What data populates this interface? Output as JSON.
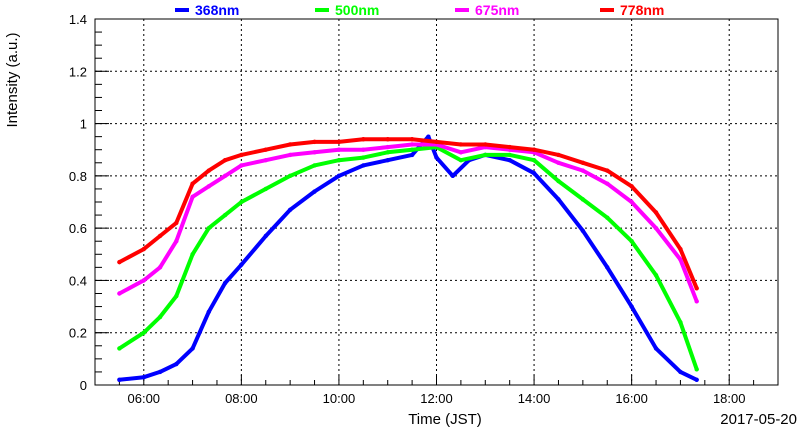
{
  "chart_data": {
    "type": "scatter",
    "xlabel": "Time (JST)",
    "ylabel": "Intensity (a.u.)",
    "date_label": "2017-05-20",
    "xlim": [
      "05:00",
      "19:00"
    ],
    "ylim": [
      0,
      1.4
    ],
    "x_ticks": [
      "06:00",
      "08:00",
      "10:00",
      "12:00",
      "14:00",
      "16:00",
      "18:00"
    ],
    "y_ticks": [
      "0",
      "0.2",
      "0.4",
      "0.6",
      "0.8",
      "1",
      "1.2",
      "1.4"
    ],
    "grid": true,
    "legend_position": "top",
    "series": [
      {
        "name": "368nm",
        "color": "#0000ff",
        "points": [
          [
            "05:30",
            0.02
          ],
          [
            "06:00",
            0.03
          ],
          [
            "06:20",
            0.05
          ],
          [
            "06:40",
            0.08
          ],
          [
            "07:00",
            0.14
          ],
          [
            "07:20",
            0.28
          ],
          [
            "07:40",
            0.39
          ],
          [
            "08:00",
            0.46
          ],
          [
            "08:30",
            0.57
          ],
          [
            "09:00",
            0.67
          ],
          [
            "09:30",
            0.74
          ],
          [
            "10:00",
            0.8
          ],
          [
            "10:30",
            0.84
          ],
          [
            "11:00",
            0.86
          ],
          [
            "11:30",
            0.88
          ],
          [
            "11:50",
            0.95
          ],
          [
            "12:00",
            0.87
          ],
          [
            "12:20",
            0.8
          ],
          [
            "12:40",
            0.86
          ],
          [
            "13:00",
            0.88
          ],
          [
            "13:30",
            0.86
          ],
          [
            "14:00",
            0.81
          ],
          [
            "14:30",
            0.71
          ],
          [
            "15:00",
            0.59
          ],
          [
            "15:30",
            0.45
          ],
          [
            "16:00",
            0.3
          ],
          [
            "16:30",
            0.14
          ],
          [
            "17:00",
            0.05
          ],
          [
            "17:20",
            0.02
          ]
        ]
      },
      {
        "name": "500nm",
        "color": "#00ff00",
        "points": [
          [
            "05:30",
            0.14
          ],
          [
            "06:00",
            0.2
          ],
          [
            "06:20",
            0.26
          ],
          [
            "06:40",
            0.34
          ],
          [
            "07:00",
            0.5
          ],
          [
            "07:20",
            0.6
          ],
          [
            "07:40",
            0.65
          ],
          [
            "08:00",
            0.7
          ],
          [
            "08:30",
            0.75
          ],
          [
            "09:00",
            0.8
          ],
          [
            "09:30",
            0.84
          ],
          [
            "10:00",
            0.86
          ],
          [
            "10:30",
            0.87
          ],
          [
            "11:00",
            0.89
          ],
          [
            "11:30",
            0.9
          ],
          [
            "12:00",
            0.91
          ],
          [
            "12:30",
            0.86
          ],
          [
            "13:00",
            0.88
          ],
          [
            "13:30",
            0.88
          ],
          [
            "14:00",
            0.86
          ],
          [
            "14:30",
            0.78
          ],
          [
            "15:00",
            0.71
          ],
          [
            "15:30",
            0.64
          ],
          [
            "16:00",
            0.55
          ],
          [
            "16:30",
            0.42
          ],
          [
            "17:00",
            0.24
          ],
          [
            "17:20",
            0.06
          ]
        ]
      },
      {
        "name": "675nm",
        "color": "#ff00ff",
        "points": [
          [
            "05:30",
            0.35
          ],
          [
            "06:00",
            0.4
          ],
          [
            "06:20",
            0.45
          ],
          [
            "06:40",
            0.55
          ],
          [
            "07:00",
            0.72
          ],
          [
            "07:20",
            0.76
          ],
          [
            "07:40",
            0.8
          ],
          [
            "08:00",
            0.84
          ],
          [
            "08:30",
            0.86
          ],
          [
            "09:00",
            0.88
          ],
          [
            "09:30",
            0.89
          ],
          [
            "10:00",
            0.9
          ],
          [
            "10:30",
            0.9
          ],
          [
            "11:00",
            0.91
          ],
          [
            "11:30",
            0.92
          ],
          [
            "12:00",
            0.92
          ],
          [
            "12:30",
            0.89
          ],
          [
            "13:00",
            0.91
          ],
          [
            "13:30",
            0.9
          ],
          [
            "14:00",
            0.89
          ],
          [
            "14:30",
            0.85
          ],
          [
            "15:00",
            0.82
          ],
          [
            "15:30",
            0.77
          ],
          [
            "16:00",
            0.7
          ],
          [
            "16:30",
            0.6
          ],
          [
            "17:00",
            0.48
          ],
          [
            "17:20",
            0.32
          ]
        ]
      },
      {
        "name": "778nm",
        "color": "#ff0000",
        "points": [
          [
            "05:30",
            0.47
          ],
          [
            "06:00",
            0.52
          ],
          [
            "06:20",
            0.57
          ],
          [
            "06:40",
            0.62
          ],
          [
            "07:00",
            0.77
          ],
          [
            "07:20",
            0.82
          ],
          [
            "07:40",
            0.86
          ],
          [
            "08:00",
            0.88
          ],
          [
            "08:30",
            0.9
          ],
          [
            "09:00",
            0.92
          ],
          [
            "09:30",
            0.93
          ],
          [
            "10:00",
            0.93
          ],
          [
            "10:30",
            0.94
          ],
          [
            "11:00",
            0.94
          ],
          [
            "11:30",
            0.94
          ],
          [
            "12:00",
            0.93
          ],
          [
            "12:30",
            0.92
          ],
          [
            "13:00",
            0.92
          ],
          [
            "13:30",
            0.91
          ],
          [
            "14:00",
            0.9
          ],
          [
            "14:30",
            0.88
          ],
          [
            "15:00",
            0.85
          ],
          [
            "15:30",
            0.82
          ],
          [
            "16:00",
            0.76
          ],
          [
            "16:30",
            0.66
          ],
          [
            "17:00",
            0.52
          ],
          [
            "17:20",
            0.37
          ]
        ]
      }
    ]
  }
}
